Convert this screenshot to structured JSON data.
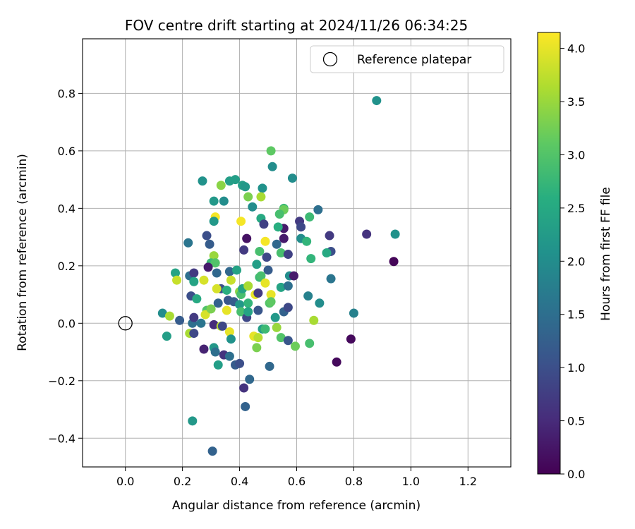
{
  "chart_data": {
    "type": "scatter",
    "title": "FOV centre drift starting at 2024/11/26 06:34:25",
    "xlabel": "Angular distance from reference (arcmin)",
    "ylabel": "Rotation from reference (arcmin)",
    "xlim": [
      -0.15,
      1.35
    ],
    "ylim": [
      -0.5,
      0.99
    ],
    "xticks": [
      0.0,
      0.2,
      0.4,
      0.6,
      0.8,
      1.0,
      1.2
    ],
    "xtick_labels": [
      "0.0",
      "0.2",
      "0.4",
      "0.6",
      "0.8",
      "1.0",
      "1.2"
    ],
    "yticks": [
      -0.4,
      -0.2,
      0.0,
      0.2,
      0.4,
      0.6,
      0.8
    ],
    "ytick_labels": [
      "−0.4",
      "−0.2",
      "0.0",
      "0.2",
      "0.4",
      "0.6",
      "0.8"
    ],
    "grid": true,
    "legend": {
      "position": "top-right",
      "entries": [
        "Reference platepar"
      ]
    },
    "reference_point": {
      "x": 0.0,
      "y": 0.0
    },
    "colorbar": {
      "label": "Hours from first FF file",
      "min": 0.0,
      "max": 4.15,
      "ticks": [
        0.0,
        0.5,
        1.0,
        1.5,
        2.0,
        2.5,
        3.0,
        3.5,
        4.0
      ],
      "tick_labels": [
        "0.0",
        "0.5",
        "1.0",
        "1.5",
        "2.0",
        "2.5",
        "3.0",
        "3.5",
        "4.0"
      ],
      "colormap": "viridis"
    },
    "points": [
      [
        0.88,
        0.775,
        2.1
      ],
      [
        0.945,
        0.31,
        2.1
      ],
      [
        0.94,
        0.215,
        0.05
      ],
      [
        0.51,
        0.6,
        3.1
      ],
      [
        0.515,
        0.545,
        2.0
      ],
      [
        0.585,
        0.505,
        2.0
      ],
      [
        0.27,
        0.495,
        2.1
      ],
      [
        0.365,
        0.495,
        2.3
      ],
      [
        0.385,
        0.5,
        2.3
      ],
      [
        0.335,
        0.48,
        3.4
      ],
      [
        0.41,
        0.48,
        2.3
      ],
      [
        0.42,
        0.475,
        2.2
      ],
      [
        0.48,
        0.47,
        2.1
      ],
      [
        0.43,
        0.44,
        3.3
      ],
      [
        0.475,
        0.44,
        3.6
      ],
      [
        0.31,
        0.425,
        2.2
      ],
      [
        0.345,
        0.425,
        2.0
      ],
      [
        0.445,
        0.405,
        2.0
      ],
      [
        0.555,
        0.4,
        2.8
      ],
      [
        0.555,
        0.395,
        3.2
      ],
      [
        0.675,
        0.395,
        1.5
      ],
      [
        0.54,
        0.38,
        2.9
      ],
      [
        0.315,
        0.37,
        4.1
      ],
      [
        0.31,
        0.355,
        2.2
      ],
      [
        0.405,
        0.355,
        4.1
      ],
      [
        0.475,
        0.365,
        2.5
      ],
      [
        0.485,
        0.345,
        0.8
      ],
      [
        0.645,
        0.37,
        2.8
      ],
      [
        0.61,
        0.355,
        0.7
      ],
      [
        0.615,
        0.335,
        0.9
      ],
      [
        0.555,
        0.33,
        0.3
      ],
      [
        0.535,
        0.335,
        2.6
      ],
      [
        0.425,
        0.295,
        0.2
      ],
      [
        0.555,
        0.295,
        0.3
      ],
      [
        0.49,
        0.285,
        4.1
      ],
      [
        0.615,
        0.295,
        2.0
      ],
      [
        0.635,
        0.285,
        2.7
      ],
      [
        0.715,
        0.305,
        0.7
      ],
      [
        0.845,
        0.31,
        0.6
      ],
      [
        0.22,
        0.28,
        1.6
      ],
      [
        0.285,
        0.305,
        1.0
      ],
      [
        0.295,
        0.275,
        1.2
      ],
      [
        0.31,
        0.235,
        3.5
      ],
      [
        0.415,
        0.255,
        0.7
      ],
      [
        0.47,
        0.25,
        2.9
      ],
      [
        0.53,
        0.275,
        1.4
      ],
      [
        0.545,
        0.245,
        2.9
      ],
      [
        0.57,
        0.24,
        0.8
      ],
      [
        0.72,
        0.25,
        1.0
      ],
      [
        0.705,
        0.245,
        2.5
      ],
      [
        0.65,
        0.225,
        2.7
      ],
      [
        0.495,
        0.23,
        0.9
      ],
      [
        0.46,
        0.205,
        2.3
      ],
      [
        0.3,
        0.21,
        2.8
      ],
      [
        0.315,
        0.21,
        3.0
      ],
      [
        0.29,
        0.195,
        0.3
      ],
      [
        0.32,
        0.175,
        1.4
      ],
      [
        0.175,
        0.175,
        2.4
      ],
      [
        0.225,
        0.165,
        1.5
      ],
      [
        0.24,
        0.175,
        0.7
      ],
      [
        0.18,
        0.15,
        3.8
      ],
      [
        0.24,
        0.145,
        2.4
      ],
      [
        0.275,
        0.15,
        3.9
      ],
      [
        0.365,
        0.18,
        1.4
      ],
      [
        0.37,
        0.15,
        3.8
      ],
      [
        0.39,
        0.185,
        2.4
      ],
      [
        0.5,
        0.185,
        1.2
      ],
      [
        0.47,
        0.16,
        2.8
      ],
      [
        0.475,
        0.165,
        2.9
      ],
      [
        0.575,
        0.165,
        2.0
      ],
      [
        0.59,
        0.165,
        0.3
      ],
      [
        0.72,
        0.155,
        1.6
      ],
      [
        0.335,
        0.12,
        1.0
      ],
      [
        0.32,
        0.12,
        3.9
      ],
      [
        0.355,
        0.115,
        2.6
      ],
      [
        0.36,
        0.08,
        1.1
      ],
      [
        0.4,
        0.11,
        3.4
      ],
      [
        0.405,
        0.1,
        2.9
      ],
      [
        0.41,
        0.12,
        2.4
      ],
      [
        0.43,
        0.13,
        3.6
      ],
      [
        0.455,
        0.1,
        4.0
      ],
      [
        0.465,
        0.105,
        0.7
      ],
      [
        0.49,
        0.14,
        4.0
      ],
      [
        0.51,
        0.1,
        4.0
      ],
      [
        0.545,
        0.125,
        2.4
      ],
      [
        0.57,
        0.13,
        1.5
      ],
      [
        0.23,
        0.095,
        1.0
      ],
      [
        0.25,
        0.085,
        2.5
      ],
      [
        0.325,
        0.07,
        1.3
      ],
      [
        0.38,
        0.075,
        1.2
      ],
      [
        0.4,
        0.065,
        2.2
      ],
      [
        0.43,
        0.07,
        2.7
      ],
      [
        0.505,
        0.07,
        3.0
      ],
      [
        0.51,
        0.075,
        3.1
      ],
      [
        0.64,
        0.095,
        1.8
      ],
      [
        0.68,
        0.07,
        2.0
      ],
      [
        0.13,
        0.035,
        2.0
      ],
      [
        0.155,
        0.025,
        3.6
      ],
      [
        0.19,
        0.01,
        1.2
      ],
      [
        0.235,
        0.0,
        1.5
      ],
      [
        0.24,
        0.02,
        0.7
      ],
      [
        0.265,
        0.0,
        1.6
      ],
      [
        0.285,
        0.045,
        3.0
      ],
      [
        0.28,
        0.03,
        3.9
      ],
      [
        0.3,
        0.05,
        3.3
      ],
      [
        0.31,
        -0.005,
        0.5
      ],
      [
        0.335,
        -0.01,
        3.7
      ],
      [
        0.34,
        -0.01,
        0.9
      ],
      [
        0.355,
        0.045,
        4.0
      ],
      [
        0.365,
        -0.03,
        4.0
      ],
      [
        0.37,
        -0.055,
        2.1
      ],
      [
        0.405,
        0.04,
        2.9
      ],
      [
        0.425,
        0.02,
        0.9
      ],
      [
        0.43,
        0.04,
        2.4
      ],
      [
        0.465,
        0.045,
        1.1
      ],
      [
        0.45,
        -0.045,
        4.0
      ],
      [
        0.465,
        -0.05,
        3.7
      ],
      [
        0.48,
        -0.02,
        2.3
      ],
      [
        0.49,
        -0.02,
        2.8
      ],
      [
        0.525,
        0.02,
        2.2
      ],
      [
        0.53,
        -0.015,
        3.5
      ],
      [
        0.545,
        -0.05,
        3.0
      ],
      [
        0.555,
        0.04,
        1.3
      ],
      [
        0.57,
        0.055,
        0.9
      ],
      [
        0.57,
        -0.06,
        1.1
      ],
      [
        0.595,
        -0.08,
        3.2
      ],
      [
        0.66,
        0.01,
        3.6
      ],
      [
        0.645,
        -0.07,
        2.9
      ],
      [
        0.8,
        0.035,
        1.8
      ],
      [
        0.79,
        -0.055,
        0.1
      ],
      [
        0.145,
        -0.045,
        2.3
      ],
      [
        0.225,
        -0.035,
        3.6
      ],
      [
        0.24,
        -0.035,
        0.9
      ],
      [
        0.275,
        -0.09,
        0.4
      ],
      [
        0.31,
        -0.085,
        2.2
      ],
      [
        0.315,
        -0.1,
        1.5
      ],
      [
        0.325,
        -0.145,
        2.3
      ],
      [
        0.345,
        -0.11,
        0.6
      ],
      [
        0.365,
        -0.115,
        1.5
      ],
      [
        0.385,
        -0.145,
        1.2
      ],
      [
        0.4,
        -0.14,
        1.0
      ],
      [
        0.46,
        -0.085,
        3.3
      ],
      [
        0.505,
        -0.15,
        1.4
      ],
      [
        0.74,
        -0.135,
        0.1
      ],
      [
        0.415,
        -0.225,
        0.6
      ],
      [
        0.435,
        -0.195,
        1.4
      ],
      [
        0.42,
        -0.29,
        1.3
      ],
      [
        0.235,
        -0.34,
        2.2
      ],
      [
        0.305,
        -0.445,
        1.3
      ]
    ]
  }
}
